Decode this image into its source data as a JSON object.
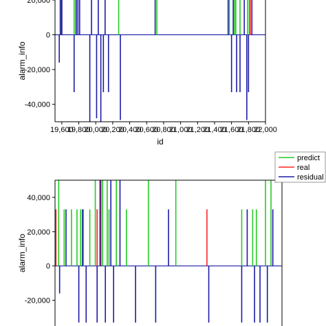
{
  "chart_data": [
    {
      "type": "bar",
      "xlabel": "id",
      "ylabel": "alarm_info",
      "xlim": [
        19520,
        22000
      ],
      "ylim": [
        -50000,
        20000
      ],
      "x_ticks": [
        19600,
        19800,
        20000,
        20200,
        20400,
        20600,
        20800,
        21000,
        21200,
        21400,
        21600,
        21800,
        22000
      ],
      "x_tick_labels": [
        "19,600",
        "19,800",
        "20,000",
        "20,200",
        "20,400",
        "20,600",
        "20,800",
        "21,000",
        "21,200",
        "21,400",
        "21,600",
        "21,800",
        "22,000"
      ],
      "y_ticks": [
        20000,
        0,
        -20000,
        -40000
      ],
      "y_tick_labels": [
        "20,000",
        "0",
        "-20,000",
        "-40,000"
      ],
      "grid": false,
      "series": [
        {
          "color": "#22cc22",
          "x": [
            19580,
            19745,
            19765,
            20270,
            20720,
            21575,
            21635,
            21650,
            21700,
            21790,
            21810
          ],
          "values": [
            25000,
            25000,
            25000,
            25000,
            25000,
            25000,
            25000,
            25000,
            25000,
            25000,
            25000
          ]
        },
        {
          "color": "#ff2222",
          "x": [
            19600,
            21820
          ],
          "values": [
            25000,
            25000
          ]
        },
        {
          "color": "#1a1aa6",
          "x": [
            19570,
            19585,
            19600,
            19745,
            19770,
            19790,
            19810,
            19930,
            19950,
            20010,
            20030,
            20060,
            20090,
            20110,
            20150,
            20290,
            20700,
            21560,
            21600,
            21620,
            21660,
            21700,
            21750,
            21780,
            21800,
            21840
          ],
          "values": [
            -16000,
            25000,
            25000,
            -33000,
            25000,
            25000,
            25000,
            -50000,
            25000,
            -48000,
            25000,
            -50000,
            -33000,
            25000,
            -33000,
            -49000,
            25000,
            25000,
            -33000,
            25000,
            -33000,
            -33000,
            25000,
            -49000,
            -33000,
            25000
          ]
        }
      ]
    },
    {
      "type": "bar",
      "xlabel": "",
      "ylabel": "alarm_info",
      "xlim": [
        19520,
        22000
      ],
      "ylim": [
        -35000,
        50000
      ],
      "y_ticks": [
        40000,
        20000,
        0,
        -20000
      ],
      "y_tick_labels": [
        "40,000",
        "20,000",
        "0",
        "-20,000"
      ],
      "grid": false,
      "legend_position": "top-right",
      "series": [
        {
          "name": "predict",
          "color": "#22cc22",
          "x": [
            19560,
            19620,
            19700,
            19760,
            19800,
            19830,
            19900,
            19960,
            20010,
            20040,
            20090,
            20110,
            20190,
            20300,
            20540,
            20840,
            21560,
            21680,
            21720,
            21820,
            21880
          ],
          "values": [
            50000,
            33000,
            33000,
            33000,
            33000,
            33000,
            33000,
            50000,
            33000,
            50000,
            50000,
            33000,
            50000,
            33000,
            50000,
            50000,
            33000,
            33000,
            33000,
            50000,
            50000
          ]
        },
        {
          "name": "real",
          "color": "#ff2222",
          "x": [
            19530,
            19980,
            20010,
            21180
          ],
          "values": [
            33000,
            33000,
            50000,
            33000
          ]
        },
        {
          "name": "residual",
          "color": "#1a1aa6",
          "x": [
            19570,
            19640,
            19780,
            19820,
            19860,
            19980,
            20020,
            20070,
            20130,
            20160,
            20230,
            20400,
            20620,
            20760,
            21200,
            21560,
            21620,
            21700,
            21760,
            21840,
            21900
          ],
          "values": [
            -16000,
            33000,
            -33000,
            33000,
            -33000,
            -33000,
            50000,
            -33000,
            50000,
            -33000,
            50000,
            -33000,
            -33000,
            33000,
            -33000,
            -33000,
            33000,
            -33000,
            -33000,
            -33000,
            33000
          ]
        }
      ]
    }
  ]
}
